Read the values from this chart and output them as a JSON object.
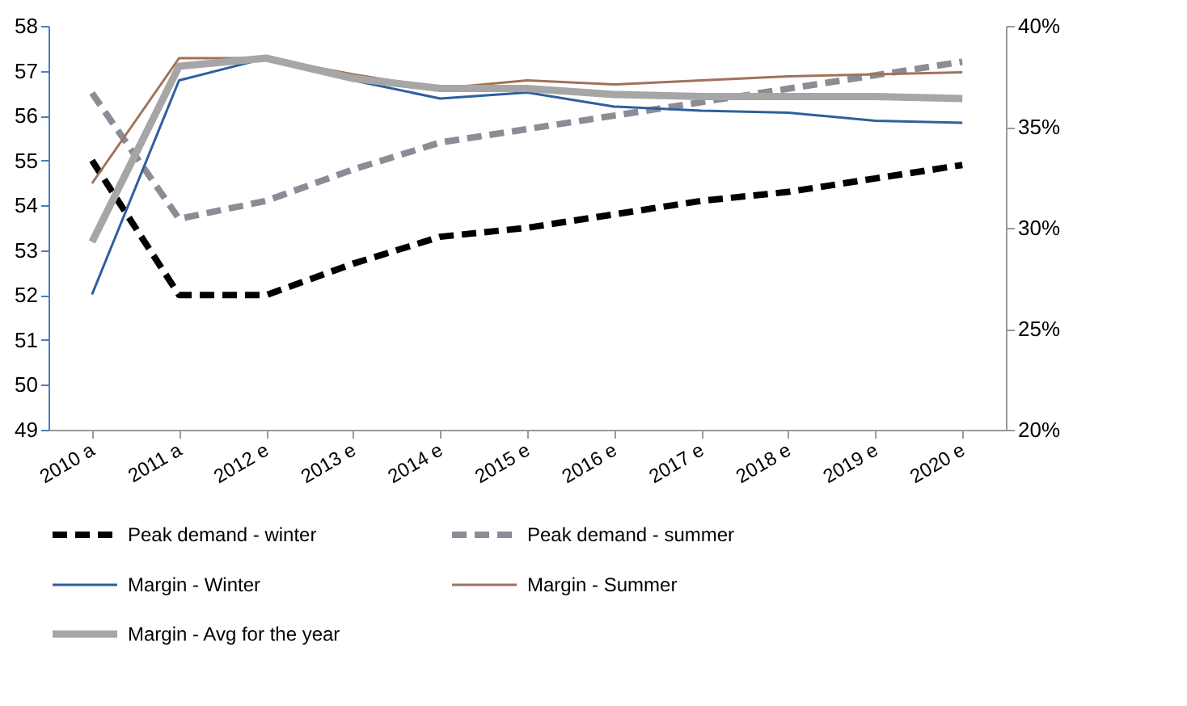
{
  "chart_data": {
    "type": "line",
    "categories": [
      "2010 a",
      "2011 a",
      "2012 e",
      "2013 e",
      "2014 e",
      "2015 e",
      "2016 e",
      "2017 e",
      "2018 e",
      "2019 e",
      "2020 e"
    ],
    "ylim": [
      49,
      58
    ],
    "yticks": [
      49,
      50,
      51,
      52,
      53,
      54,
      55,
      56,
      57,
      58
    ],
    "y2lim": [
      20,
      40
    ],
    "y2ticks": [
      {
        "value": 20,
        "label": "20%"
      },
      {
        "value": 25,
        "label": "25%"
      },
      {
        "value": 30,
        "label": "30%"
      },
      {
        "value": 35,
        "label": "35%"
      },
      {
        "value": 40,
        "label": "40%"
      }
    ],
    "grid": false,
    "legend": "bottom",
    "marker": "none",
    "series": [
      {
        "name": "Peak demand  - winter",
        "color": "#000000",
        "line_style": "dashed",
        "values": [
          55,
          52,
          52,
          52.7,
          53.3,
          53.5,
          53.8,
          54.1,
          54.3,
          54.6,
          54.9
        ]
      },
      {
        "name": "Peak demand  - summer",
        "color": "#8c8c96",
        "line_style": "dashed",
        "values": [
          56.5,
          53.7,
          54.1,
          54.8,
          55.4,
          55.7,
          56.0,
          56.3,
          56.6,
          56.9,
          57.2
        ]
      },
      {
        "name": "Margin - Winter",
        "color": "#2e5f9e",
        "line_style": "solid",
        "axis": "y2",
        "values": [
          26.7,
          37.3,
          38.4,
          37.3,
          36.4,
          36.7,
          36.0,
          35.8,
          35.7,
          35.3,
          35.2
        ]
      },
      {
        "name": "Margin - Summer",
        "color": "#a0725a",
        "line_style": "solid",
        "axis": "y2",
        "values": [
          32.2,
          38.4,
          38.4,
          37.6,
          36.9,
          37.3,
          37.1,
          37.3,
          37.5,
          37.6,
          37.7
        ]
      },
      {
        "name": "Margin - Avg for the year",
        "color": "#a6a6a6",
        "line_style": "solid",
        "axis": "y2",
        "values": [
          29.3,
          38.0,
          38.4,
          37.4,
          36.9,
          36.9,
          36.6,
          36.5,
          36.5,
          36.5,
          36.4
        ]
      }
    ]
  }
}
